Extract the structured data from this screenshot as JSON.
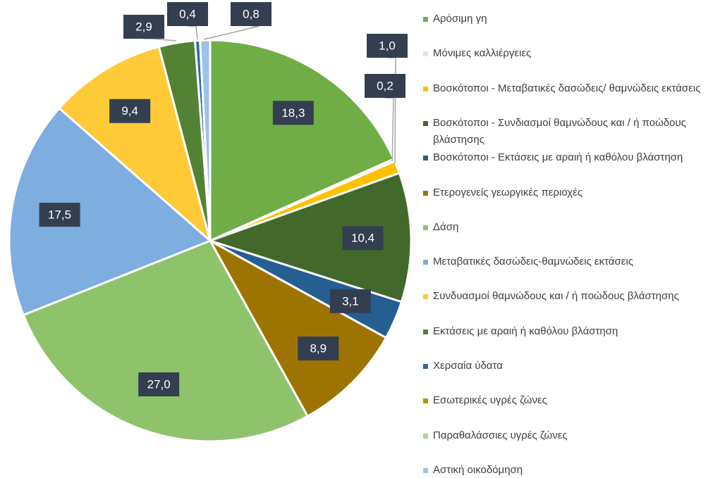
{
  "chart_data": {
    "type": "pie",
    "categories": [
      "Αρόσιμη γη",
      "Μόνιμες καλλιέργειες",
      "Βοσκότοποι - Μεταβατικές δασώδεις/ θαμνώδεις εκτάσεις",
      "Βοσκότοποι - Συνδιασμοί θαμνώδους και / ή ποώδους βλάστησης",
      "Βοσκότοποι - Εκτάσεις με αραιή ή καθόλου βλάστηση",
      "Ετερογενείς γεωργικές περιοχές",
      "Δάση",
      "Μεταβατικές δασώδεις-θαμνώδεις εκτάσεις",
      "Συνδυασμοί θαμνώδους και / ή ποώδους βλάστησης",
      "Εκτάσεις με αραιή ή καθόλου βλάστηση",
      "Χερσαία ύδατα",
      "Εσωτερικές υγρές ζώνες",
      "Παραθαλάσσιες υγρές ζώνες",
      "Αστική οικοδόμηση"
    ],
    "values": [
      18.3,
      0.2,
      1.0,
      10.4,
      3.1,
      8.9,
      27.0,
      17.5,
      9.4,
      2.9,
      0.4,
      0,
      0,
      0.8
    ],
    "value_labels": [
      "18,3",
      "0,2",
      "1,0",
      "10,4",
      "3,1",
      "8,9",
      "27,0",
      "17,5",
      "9,4",
      "2,9",
      "0,4",
      null,
      null,
      "0,8"
    ],
    "colors": [
      "#70ad47",
      "#d6e4f5",
      "#ffc000",
      "#43682b",
      "#255e91",
      "#9e7400",
      "#8fc36b",
      "#7eade0",
      "#ffca38",
      "#548235",
      "#2e6ca4",
      "#bf8f00",
      "#a9d18e",
      "#9dc3e6"
    ],
    "legend": "right"
  }
}
